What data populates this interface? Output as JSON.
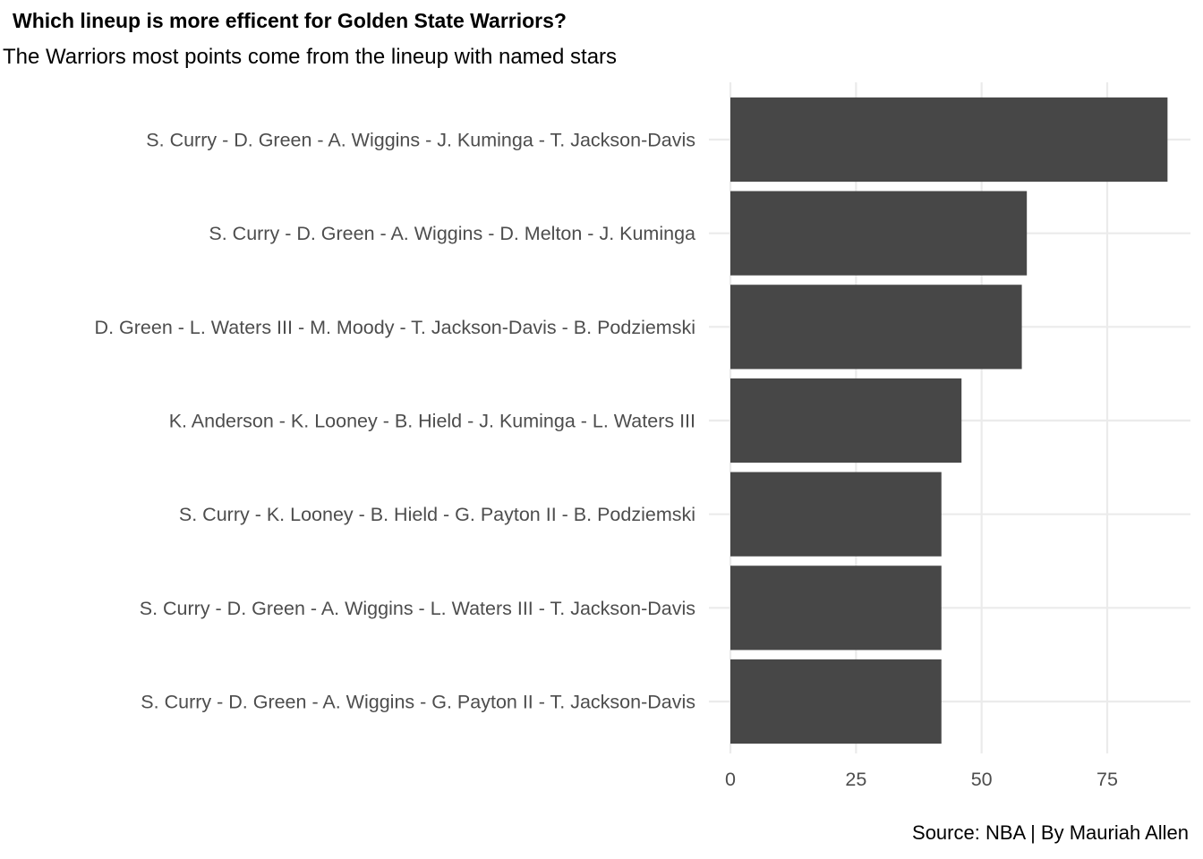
{
  "chart_data": {
    "type": "bar",
    "orientation": "horizontal",
    "title": "Which lineup is more efficent for Golden State Warriors?",
    "subtitle": "The Warriors most points come from the lineup with named stars",
    "caption": "Source: NBA | By Mauriah Allen",
    "xlabel": "",
    "ylabel": "",
    "categories": [
      "S. Curry - D. Green - A. Wiggins - J. Kuminga - T. Jackson-Davis",
      "S. Curry - D. Green - A. Wiggins - D. Melton - J. Kuminga",
      "D. Green - L. Waters III - M. Moody - T. Jackson-Davis - B. Podziemski",
      "K. Anderson - K. Looney - B. Hield - J. Kuminga - L. Waters III",
      "S. Curry - K. Looney - B. Hield - G. Payton II - B. Podziemski",
      "S. Curry - D. Green - A. Wiggins - L. Waters III - T. Jackson-Davis",
      "S. Curry - D. Green - A. Wiggins - G. Payton II - T. Jackson-Davis"
    ],
    "values": [
      87,
      59,
      58,
      46,
      42,
      42,
      42
    ],
    "xlim": [
      0,
      91
    ],
    "xticks": [
      0,
      25,
      50,
      75
    ],
    "grid": true,
    "legend": "none",
    "bar_color": "#474747",
    "grid_color": "#ebebeb",
    "label_color": "#4d4d4d"
  }
}
